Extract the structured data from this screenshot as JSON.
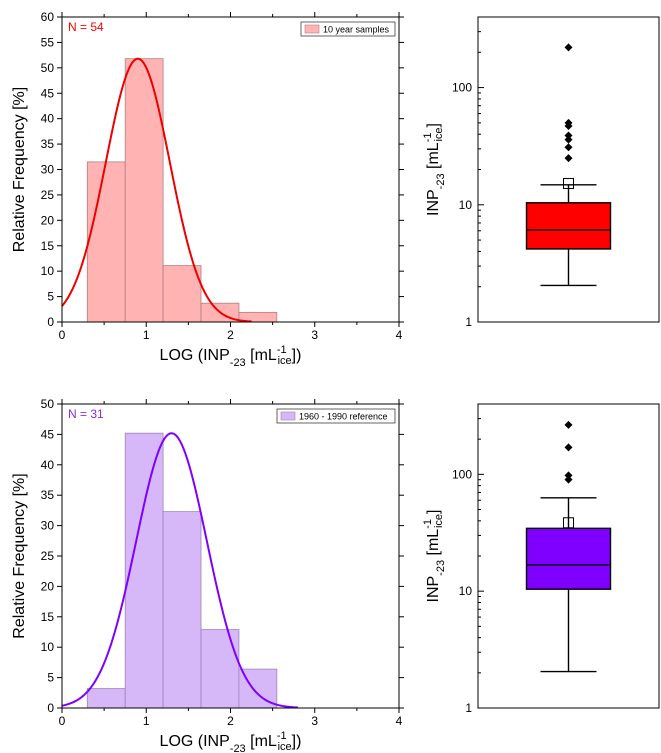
{
  "chart_data": [
    {
      "type": "bar",
      "variant": "histogram",
      "annotation": "N = 54",
      "annotation_color": "#ff0000",
      "legend": "10 year samples",
      "legend_placement": "top-right",
      "bar_color": "#ffb3b3",
      "bar_edge": "#b08080",
      "curve_color": "#ee0000",
      "xlabel": {
        "main": "LOG (INP",
        "sub": "-23",
        "mid": " [mL",
        "sup": "-1",
        "sub2": "ice",
        "end": "])"
      },
      "ylabel": "Relative Frequency [%]",
      "xlim": [
        0,
        4
      ],
      "ylim": [
        0,
        60
      ],
      "x_ticks": [
        0,
        1,
        2,
        3,
        4
      ],
      "y_ticks": [
        0,
        5,
        10,
        15,
        20,
        25,
        30,
        35,
        40,
        45,
        50,
        55,
        60
      ],
      "bins": [
        {
          "from": 0.3,
          "to": 0.75,
          "value": 31.5
        },
        {
          "from": 0.75,
          "to": 1.2,
          "value": 51.8
        },
        {
          "from": 1.2,
          "to": 1.65,
          "value": 11.1
        },
        {
          "from": 1.65,
          "to": 2.1,
          "value": 3.7
        },
        {
          "from": 2.1,
          "to": 2.55,
          "value": 1.9
        }
      ],
      "fit": {
        "kind": "gaussian",
        "mean": 0.9,
        "sigma": 0.38,
        "peak": 51.8,
        "x_from": 0,
        "x_to": 2.25
      }
    },
    {
      "type": "box",
      "yscale": "log",
      "ylabel": {
        "main": "INP",
        "sub": "-23",
        "mid": " [mL",
        "sup": "-1",
        "sub2": "ice",
        "end": "]"
      },
      "ylim": [
        1,
        400
      ],
      "y_ticks": [
        1,
        10,
        100
      ],
      "box_color": "#ff0000",
      "whisker_low": 2.05,
      "q1": 4.2,
      "median": 6.1,
      "q3": 10.4,
      "whisker_high": 14.8,
      "mean": 15.2,
      "outliers": [
        25,
        31,
        36,
        39,
        47,
        50,
        220
      ]
    },
    {
      "type": "bar",
      "variant": "histogram",
      "annotation": "N = 31",
      "annotation_color": "#8a2be2",
      "legend": "1960 - 1990 reference",
      "legend_placement": "top-right",
      "bar_color": "#d6b8f8",
      "bar_edge": "#9a86b8",
      "curve_color": "#7f00ff",
      "xlabel": {
        "main": "LOG (INP",
        "sub": "-23",
        "mid": " [mL",
        "sup": "-1",
        "sub2": "ice",
        "end": "])"
      },
      "ylabel": "Relative Frequency [%]",
      "xlim": [
        0,
        4
      ],
      "ylim": [
        0,
        50
      ],
      "x_ticks": [
        0,
        1,
        2,
        3,
        4
      ],
      "y_ticks": [
        0,
        5,
        10,
        15,
        20,
        25,
        30,
        35,
        40,
        45,
        50
      ],
      "bins": [
        {
          "from": 0.3,
          "to": 0.75,
          "value": 3.2
        },
        {
          "from": 0.75,
          "to": 1.2,
          "value": 45.2
        },
        {
          "from": 1.2,
          "to": 1.65,
          "value": 32.3
        },
        {
          "from": 1.65,
          "to": 2.1,
          "value": 12.9
        },
        {
          "from": 2.1,
          "to": 2.55,
          "value": 6.4
        }
      ],
      "fit": {
        "kind": "gaussian",
        "mean": 1.3,
        "sigma": 0.42,
        "peak": 45.2,
        "x_from": 0,
        "x_to": 2.8
      }
    },
    {
      "type": "box",
      "yscale": "log",
      "ylabel": {
        "main": "INP",
        "sub": "-23",
        "mid": " [mL",
        "sup": "-1",
        "sub2": "ice",
        "end": "]"
      },
      "ylim": [
        1,
        400
      ],
      "y_ticks": [
        1,
        10,
        100
      ],
      "box_color": "#7f00ff",
      "whisker_low": 2.05,
      "q1": 10.4,
      "median": 16.8,
      "q3": 34.5,
      "whisker_high": 63,
      "mean": 38.5,
      "outliers": [
        90,
        98,
        170,
        265
      ]
    }
  ]
}
